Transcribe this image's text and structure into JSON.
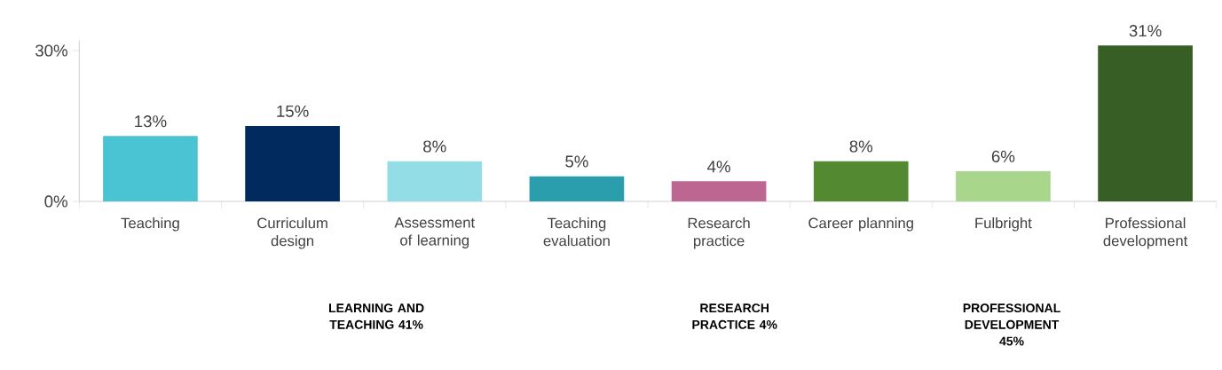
{
  "chart_data": {
    "type": "bar",
    "categories": [
      "Teaching",
      "Curriculum design",
      "Assessment of learning",
      "Teaching evaluation",
      "Research practice",
      "Career planning",
      "Fulbright",
      "Professional development"
    ],
    "values": [
      13,
      15,
      8,
      5,
      4,
      8,
      6,
      31
    ],
    "colors": [
      "#4ac3d3",
      "#012a5e",
      "#93dde6",
      "#2a9ead",
      "#be6692",
      "#538a31",
      "#a8d68a",
      "#375e24"
    ],
    "value_labels": [
      "13%",
      "15%",
      "8%",
      "5%",
      "4%",
      "8%",
      "6%",
      "31%"
    ],
    "ylim": [
      0,
      32
    ],
    "yticks": [
      {
        "value": 0,
        "label": "0%"
      },
      {
        "value": 30,
        "label": "30%"
      }
    ],
    "annotations": [
      "LEARNING AND TEACHING 41%",
      "RESEARCH PRACTICE 4%",
      "PROFESSIONAL DEVELOPMENT 45%"
    ]
  }
}
